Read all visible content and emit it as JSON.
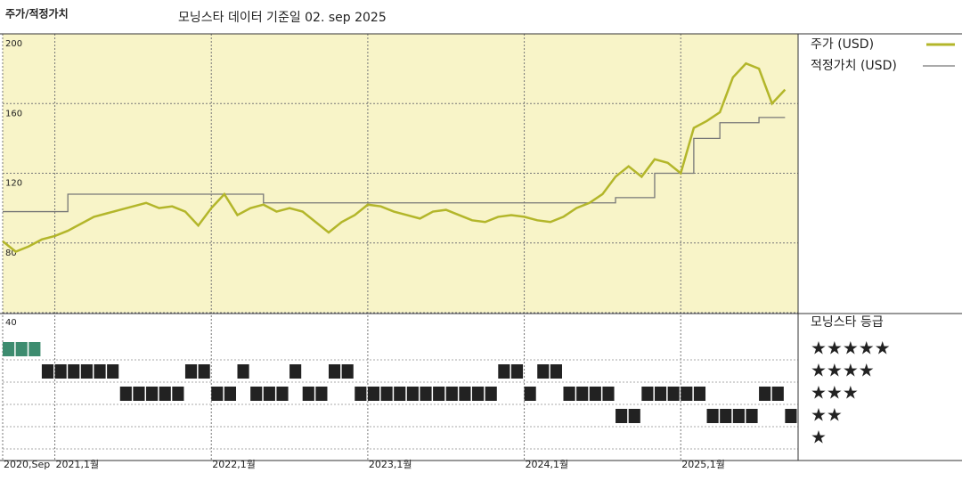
{
  "chart_data": {
    "type": "line",
    "title": "주가/적정가치",
    "subtitle": "모닝스타 데이터 기준일 02. sep 2025",
    "background": "#f8f4c8",
    "x": [
      "2020-09",
      "2020-10",
      "2020-11",
      "2020-12",
      "2021-01",
      "2021-02",
      "2021-03",
      "2021-04",
      "2021-05",
      "2021-06",
      "2021-07",
      "2021-08",
      "2021-09",
      "2021-10",
      "2021-11",
      "2021-12",
      "2022-01",
      "2022-02",
      "2022-03",
      "2022-04",
      "2022-05",
      "2022-06",
      "2022-07",
      "2022-08",
      "2022-09",
      "2022-10",
      "2022-11",
      "2022-12",
      "2023-01",
      "2023-02",
      "2023-03",
      "2023-04",
      "2023-05",
      "2023-06",
      "2023-07",
      "2023-08",
      "2023-09",
      "2023-10",
      "2023-11",
      "2023-12",
      "2024-01",
      "2024-02",
      "2024-03",
      "2024-04",
      "2024-05",
      "2024-06",
      "2024-07",
      "2024-08",
      "2024-09",
      "2024-10",
      "2024-11",
      "2024-12",
      "2025-01",
      "2025-02",
      "2025-03",
      "2025-04",
      "2025-05",
      "2025-06",
      "2025-07",
      "2025-08",
      "2025-09"
    ],
    "xlim": [
      "2020-09",
      "2025-10"
    ],
    "xticks": [
      {
        "value": "2020-09",
        "label": "2020,Sep"
      },
      {
        "value": "2021-01",
        "label": "2021,1월"
      },
      {
        "value": "2022-01",
        "label": "2022,1월"
      },
      {
        "value": "2023-01",
        "label": "2023,1월"
      },
      {
        "value": "2024-01",
        "label": "2024,1월"
      },
      {
        "value": "2025-01",
        "label": "2025,1월"
      }
    ],
    "ylim": [
      40,
      200
    ],
    "yticks": [
      40,
      80,
      120,
      160,
      200
    ],
    "grid": true,
    "series": [
      {
        "name": "주가 (USD)",
        "color": "#b3b62a",
        "values": [
          81,
          75,
          78,
          82,
          84,
          87,
          91,
          95,
          97,
          99,
          101,
          103,
          100,
          101,
          98,
          90,
          100,
          108,
          96,
          100,
          102,
          98,
          100,
          98,
          92,
          86,
          92,
          96,
          102,
          101,
          98,
          96,
          94,
          98,
          99,
          96,
          93,
          92,
          95,
          96,
          95,
          93,
          92,
          95,
          100,
          103,
          108,
          118,
          124,
          118,
          128,
          126,
          120,
          146,
          150,
          155,
          175,
          183,
          180,
          160,
          168
        ]
      },
      {
        "name": "적정가치 (USD)",
        "color": "#777777",
        "step": true,
        "values": [
          98,
          98,
          98,
          98,
          98,
          108,
          108,
          108,
          108,
          108,
          108,
          108,
          108,
          108,
          108,
          108,
          108,
          108,
          108,
          108,
          103,
          103,
          103,
          103,
          103,
          103,
          103,
          103,
          103,
          103,
          103,
          103,
          103,
          103,
          103,
          103,
          103,
          103,
          103,
          103,
          103,
          103,
          103,
          103,
          103,
          103,
          103,
          106,
          106,
          106,
          120,
          120,
          120,
          140,
          140,
          149,
          149,
          149,
          152,
          152,
          152
        ]
      }
    ],
    "ratings": {
      "name": "모닝스타 등급",
      "labels": [
        "★★★★★",
        "★★★★",
        "★★★",
        "★★",
        "★"
      ],
      "colors": [
        "#3d8c6f",
        "#222222",
        "#222222",
        "#222222",
        "#222222"
      ],
      "values": [
        5,
        5,
        5,
        4,
        4,
        4,
        4,
        4,
        4,
        3,
        3,
        3,
        3,
        3,
        4,
        4,
        3,
        3,
        4,
        3,
        3,
        3,
        4,
        3,
        3,
        4,
        4,
        3,
        3,
        3,
        3,
        3,
        3,
        3,
        3,
        3,
        3,
        3,
        4,
        4,
        3,
        4,
        4,
        3,
        3,
        3,
        3,
        2,
        2,
        3,
        3,
        3,
        3,
        3,
        2,
        2,
        2,
        2,
        3,
        3,
        2
      ]
    }
  }
}
